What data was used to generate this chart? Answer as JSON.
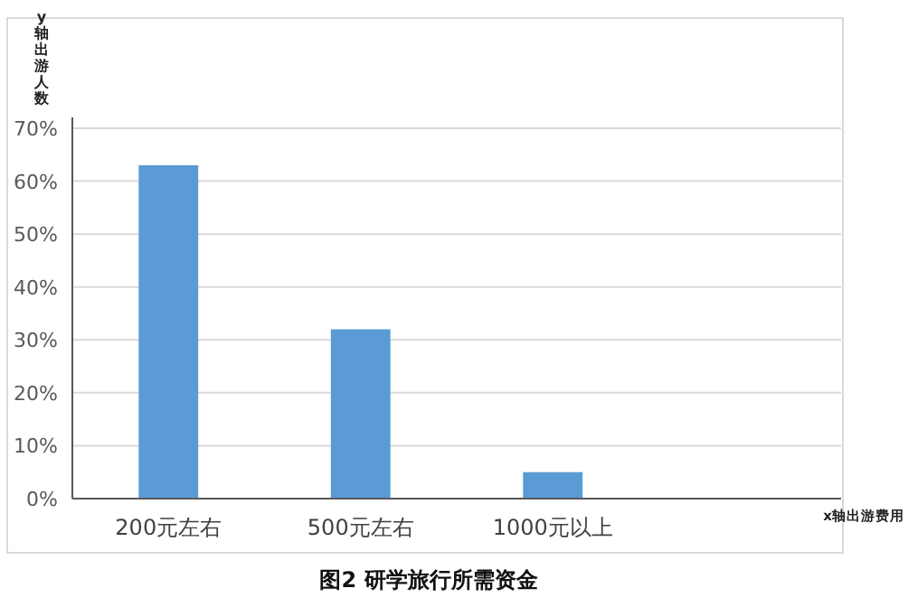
{
  "chart_data": {
    "type": "bar",
    "title": "图2  研学旅行所需资金",
    "xlabel": "x轴出游费用",
    "ylabel": "y轴出游人数",
    "categories": [
      "200元左右",
      "500元左右",
      "1000元以上",
      null
    ],
    "values": [
      63,
      32,
      5,
      null
    ],
    "color": "#5b9bd5",
    "ylim": [
      0,
      70
    ],
    "yticks": [
      {
        "value": 0,
        "label": "0%"
      },
      {
        "value": 10,
        "label": "10%"
      },
      {
        "value": 20,
        "label": "20%"
      },
      {
        "value": 30,
        "label": "30%"
      },
      {
        "value": 40,
        "label": "40%"
      },
      {
        "value": 50,
        "label": "50%"
      },
      {
        "value": 60,
        "label": "60%"
      },
      {
        "value": 70,
        "label": "70%"
      }
    ],
    "grid": "y"
  }
}
